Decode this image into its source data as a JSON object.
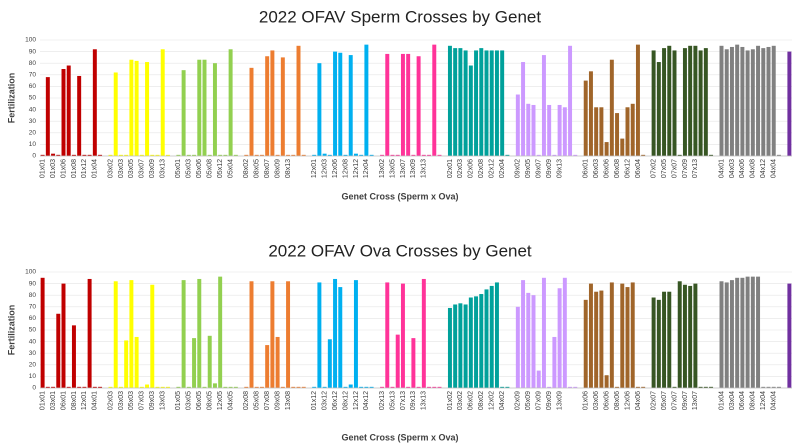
{
  "chart_data": [
    {
      "type": "bar",
      "title": "2022 OFAV Sperm Crosses by Genet",
      "y_label": "Fertilization",
      "x_label": "Genet Cross (Sperm x Ova)",
      "ylim": [
        0,
        100
      ],
      "yticks": [
        0,
        10,
        20,
        30,
        40,
        50,
        60,
        70,
        80,
        90,
        100
      ],
      "grid": true,
      "groups": [
        {
          "color": "#c00000",
          "categories": [
            "01x01",
            null,
            "01x03",
            null,
            "01x06",
            null,
            "01x08",
            null,
            "01x12",
            null,
            "01x04",
            null
          ],
          "values": [
            1,
            68,
            2,
            1,
            75,
            78,
            1,
            69,
            1,
            1,
            92,
            1
          ]
        },
        {
          "color": "#ffff00",
          "categories": [
            "03x02",
            null,
            "03x03",
            null,
            "03x05",
            null,
            "03x07",
            null,
            "03x09",
            null,
            "03x13",
            null
          ],
          "values": [
            1,
            72,
            1,
            1,
            83,
            82,
            1,
            81,
            1,
            1,
            92,
            1
          ]
        },
        {
          "color": "#92d050",
          "categories": [
            "05x01",
            null,
            "05x03",
            null,
            "05x06",
            null,
            "05x08",
            null,
            "05x12",
            null,
            "05x04",
            null
          ],
          "values": [
            1,
            74,
            1,
            1,
            83,
            83,
            1,
            80,
            1,
            1,
            92,
            1
          ]
        },
        {
          "color": "#ed7d31",
          "categories": [
            "08x02",
            null,
            "08x05",
            null,
            "08x07",
            null,
            "08x09",
            null,
            "08x13",
            null,
            null,
            null
          ],
          "values": [
            1,
            76,
            1,
            1,
            86,
            91,
            1,
            85,
            1,
            1,
            95,
            1
          ]
        },
        {
          "color": "#00b0f0",
          "categories": [
            "12x01",
            null,
            "12x03",
            null,
            "12x06",
            null,
            "12x08",
            null,
            "12x12",
            null,
            "12x04",
            null
          ],
          "values": [
            1,
            80,
            2,
            1,
            90,
            89,
            1,
            87,
            2,
            1,
            96,
            1
          ]
        },
        {
          "color": "#ff3399",
          "categories": [
            "13x02",
            null,
            "13x05",
            null,
            "13x07",
            null,
            "13x09",
            null,
            "13x13",
            null,
            null,
            null
          ],
          "values": [
            1,
            88,
            1,
            1,
            88,
            88,
            1,
            86,
            1,
            1,
            96,
            1
          ]
        },
        {
          "color": "#00a19b",
          "categories": [
            "02x01",
            null,
            "02x03",
            null,
            "02x06",
            null,
            "02x08",
            null,
            "02x12",
            null,
            "02x04",
            null
          ],
          "values": [
            95,
            93,
            93,
            91,
            78,
            91,
            93,
            91,
            91,
            91,
            91,
            1
          ]
        },
        {
          "color": "#cc99ff",
          "categories": [
            "09x02",
            null,
            "09x05",
            null,
            "09x07",
            null,
            "09x09",
            null,
            "09x13",
            null,
            null,
            null
          ],
          "values": [
            53,
            81,
            45,
            44,
            1,
            87,
            44,
            1,
            44,
            42,
            95,
            1
          ]
        },
        {
          "color": "#a0652a",
          "categories": [
            "06x01",
            null,
            "06x03",
            null,
            "06x06",
            null,
            "06x08",
            null,
            "06x12",
            null,
            "06x04",
            null
          ],
          "values": [
            65,
            73,
            42,
            42,
            12,
            83,
            37,
            15,
            42,
            45,
            96,
            1
          ]
        },
        {
          "color": "#375623",
          "categories": [
            "07x02",
            null,
            "07x05",
            null,
            "07x07",
            null,
            "07x09",
            null,
            "07x13",
            null,
            null,
            null
          ],
          "values": [
            91,
            81,
            93,
            95,
            91,
            1,
            93,
            95,
            95,
            91,
            93,
            1
          ]
        },
        {
          "color": "#808080",
          "categories": [
            "04x01",
            null,
            "04x03",
            null,
            "04x06",
            null,
            "04x08",
            null,
            "04x12",
            null,
            "04x04",
            null
          ],
          "values": [
            95,
            92,
            94,
            96,
            94,
            91,
            92,
            95,
            93,
            94,
            95,
            1
          ]
        },
        {
          "color": "#7030a0",
          "categories": [
            null
          ],
          "values": [
            90
          ]
        }
      ]
    },
    {
      "type": "bar",
      "title": "2022 OFAV Ova Crosses by Genet",
      "y_label": "Fertilization",
      "x_label": "Genet Cross (Sperm x Ova)",
      "ylim": [
        0,
        100
      ],
      "yticks": [
        0,
        10,
        20,
        30,
        40,
        50,
        60,
        70,
        80,
        90,
        100
      ],
      "grid": true,
      "groups": [
        {
          "color": "#c00000",
          "categories": [
            "01x01",
            null,
            "03x01",
            null,
            "06x01",
            null,
            "08x01",
            null,
            "12x01",
            null,
            "04x01",
            null
          ],
          "values": [
            95,
            1,
            1,
            64,
            90,
            1,
            54,
            1,
            1,
            94,
            1,
            1
          ]
        },
        {
          "color": "#ffff00",
          "categories": [
            "02x03",
            null,
            "03x03",
            null,
            "05x03",
            null,
            "07x03",
            null,
            "09x03",
            null,
            "13x03",
            null
          ],
          "values": [
            1,
            92,
            1,
            41,
            93,
            44,
            1,
            3,
            89,
            1,
            1,
            1
          ]
        },
        {
          "color": "#92d050",
          "categories": [
            "01x05",
            null,
            "03x05",
            null,
            "06x05",
            null,
            "08x05",
            null,
            "12x05",
            null,
            "04x05",
            null
          ],
          "values": [
            1,
            93,
            1,
            43,
            94,
            1,
            45,
            4,
            96,
            1,
            1,
            1
          ]
        },
        {
          "color": "#ed7d31",
          "categories": [
            "02x08",
            null,
            "05x08",
            null,
            "07x08",
            null,
            "09x08",
            null,
            "13x08",
            null,
            null,
            null
          ],
          "values": [
            1,
            92,
            1,
            1,
            37,
            92,
            44,
            1,
            92,
            1,
            1,
            1
          ]
        },
        {
          "color": "#00b0f0",
          "categories": [
            "01x12",
            null,
            "03x12",
            null,
            "06x12",
            null,
            "08x12",
            null,
            "12x12",
            null,
            "04x12",
            null
          ],
          "values": [
            1,
            91,
            1,
            42,
            94,
            87,
            1,
            3,
            93,
            1,
            1,
            1
          ]
        },
        {
          "color": "#ff3399",
          "categories": [
            "02x13",
            null,
            "05x13",
            null,
            "07x13",
            null,
            "09x13",
            null,
            "13x13",
            null,
            null,
            null
          ],
          "values": [
            1,
            91,
            1,
            46,
            90,
            1,
            43,
            1,
            94,
            1,
            1,
            1
          ]
        },
        {
          "color": "#00a19b",
          "categories": [
            "01x02",
            null,
            "03x02",
            null,
            "06x02",
            null,
            "08x02",
            null,
            "12x02",
            null,
            "04x02",
            null
          ],
          "values": [
            69,
            72,
            73,
            72,
            78,
            79,
            81,
            85,
            88,
            91,
            1,
            1
          ]
        },
        {
          "color": "#cc99ff",
          "categories": [
            "02x09",
            null,
            "05x09",
            null,
            "07x09",
            null,
            "09x09",
            null,
            "13x09",
            null,
            null,
            null
          ],
          "values": [
            70,
            93,
            82,
            80,
            15,
            95,
            1,
            44,
            86,
            95,
            1,
            1
          ]
        },
        {
          "color": "#a0652a",
          "categories": [
            "01x06",
            null,
            "03x06",
            null,
            "06x06",
            null,
            "08x06",
            null,
            "12x06",
            null,
            "04x06",
            null
          ],
          "values": [
            76,
            90,
            83,
            84,
            11,
            91,
            1,
            90,
            87,
            91,
            1,
            1
          ]
        },
        {
          "color": "#375623",
          "categories": [
            "02x07",
            null,
            "05x07",
            null,
            "07x07",
            null,
            "09x07",
            null,
            "13x07",
            null,
            null,
            null
          ],
          "values": [
            78,
            76,
            83,
            83,
            1,
            92,
            89,
            88,
            90,
            1,
            1,
            1
          ]
        },
        {
          "color": "#808080",
          "categories": [
            "01x04",
            null,
            "03x04",
            null,
            "06x04",
            null,
            "08x04",
            null,
            "12x04",
            null,
            "04x04",
            null
          ],
          "values": [
            92,
            91,
            93,
            95,
            95,
            96,
            96,
            96,
            1,
            1,
            1,
            1
          ]
        },
        {
          "color": "#7030a0",
          "categories": [
            null
          ],
          "values": [
            90
          ]
        }
      ]
    }
  ]
}
